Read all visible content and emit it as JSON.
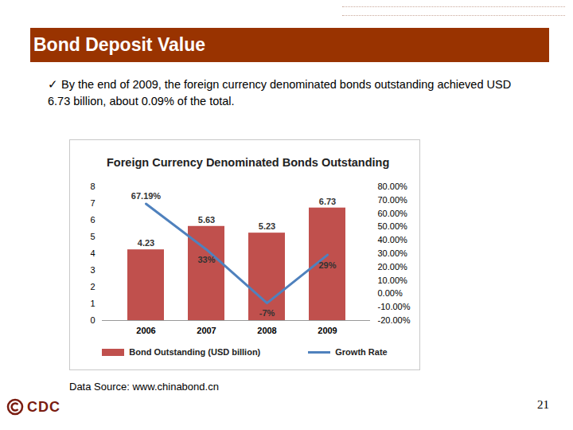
{
  "header": "Bond Deposit Value",
  "bullet": "✓ By the end of 2009, the foreign currency denominated bonds  outstanding achieved USD 6.73 billion,  about  0.09% of the total.",
  "chart_data": {
    "type": "bar",
    "title": "Foreign Currency Denominated Bonds Outstanding",
    "categories": [
      "2006",
      "2007",
      "2008",
      "2009"
    ],
    "series": [
      {
        "name": "Bond Outstanding (USD billion)",
        "type": "bar",
        "color": "#c0504d",
        "values": [
          4.23,
          5.63,
          5.23,
          6.73
        ]
      },
      {
        "name": "Growth Rate",
        "type": "line",
        "color": "#4f81bd",
        "axis": "y2",
        "values": [
          67.19,
          33,
          -7,
          29
        ],
        "value_labels": [
          "67.19%",
          "33%",
          "-7%",
          "29%"
        ]
      }
    ],
    "ylim": [
      0,
      8
    ],
    "yticks": [
      0,
      1,
      2,
      3,
      4,
      5,
      6,
      7,
      8
    ],
    "y2lim": [
      -20,
      80
    ],
    "y2ticks": [
      {
        "value": -20,
        "label": "-20.00%"
      },
      {
        "value": -10,
        "label": "-10.00%"
      },
      {
        "value": 0,
        "label": "0.00%"
      },
      {
        "value": 10,
        "label": "10.00%"
      },
      {
        "value": 20,
        "label": "20.00%"
      },
      {
        "value": 30,
        "label": "30.00%"
      },
      {
        "value": 40,
        "label": "40.00%"
      },
      {
        "value": 50,
        "label": "50.00%"
      },
      {
        "value": 60,
        "label": "60.00%"
      },
      {
        "value": 70,
        "label": "70.00%"
      },
      {
        "value": 80,
        "label": "80.00%"
      }
    ],
    "data_labels": true,
    "grid": false,
    "legend": "bottom"
  },
  "source": "Data Source: www.chinabond.cn",
  "page_number": "21",
  "logo": "CDC"
}
